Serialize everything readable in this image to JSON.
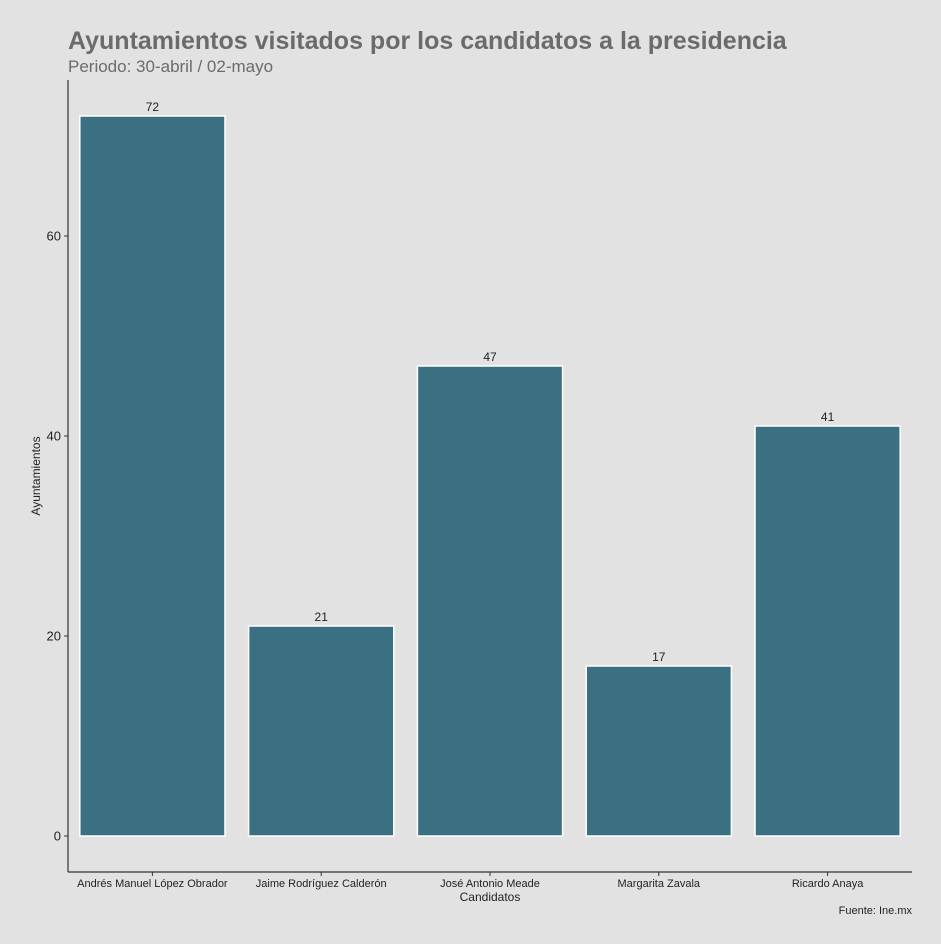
{
  "chart_data": {
    "type": "bar",
    "title": "Ayuntamientos visitados por los candidatos a la presidencia",
    "subtitle": "Periodo: 30-abril / 02-mayo",
    "xlabel": "Candidatos",
    "ylabel": "Ayuntamientos",
    "caption": "Fuente: Ine.mx",
    "categories": [
      "Andrés Manuel López Obrador",
      "Jaime Rodríguez Calderón",
      "José Antonio Meade",
      "Margarita Zavala",
      "Ricardo Anaya"
    ],
    "values": [
      72,
      21,
      47,
      17,
      41
    ],
    "data_labels": [
      "72",
      "21",
      "47",
      "17",
      "41"
    ],
    "ylim": [
      0,
      75.6
    ],
    "yticks": [
      0,
      20,
      40,
      60
    ],
    "ytick_labels": [
      "0",
      "20",
      "40",
      "60"
    ],
    "bar_color": "#3a7082",
    "grid": false
  }
}
